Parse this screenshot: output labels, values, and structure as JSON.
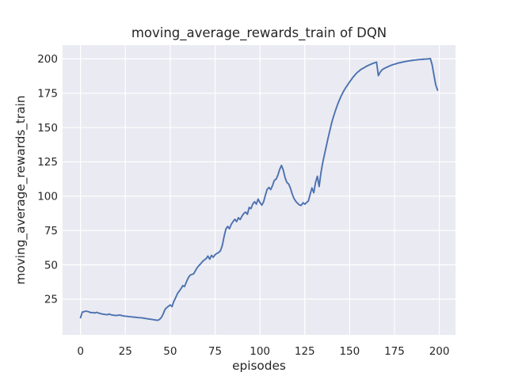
{
  "colors": {
    "figure_background": "#ffffff",
    "axes_background": "#eaeaf2",
    "grid": "#ffffff",
    "line": "#4c72b0",
    "text": "#262626"
  },
  "chart_data": {
    "type": "line",
    "title": "moving_average_rewards_train of DQN",
    "xlabel": "episodes",
    "ylabel": "moving_average_rewards_train",
    "xlim": [
      -10,
      209
    ],
    "ylim": [
      -1,
      210
    ],
    "xticks": [
      0,
      25,
      50,
      75,
      100,
      125,
      150,
      175,
      200
    ],
    "yticks": [
      25,
      50,
      75,
      100,
      125,
      150,
      175,
      200
    ],
    "grid": true,
    "legend": false,
    "series": [
      {
        "name": "moving_average_rewards_train",
        "color": "#4c72b0",
        "points": [
          [
            0,
            11.5
          ],
          [
            1,
            15.6
          ],
          [
            2,
            15.9
          ],
          [
            3,
            16.3
          ],
          [
            4,
            16.0
          ],
          [
            5,
            15.6
          ],
          [
            6,
            15.1
          ],
          [
            7,
            15.3
          ],
          [
            8,
            14.9
          ],
          [
            9,
            15.4
          ],
          [
            10,
            14.9
          ],
          [
            11,
            14.6
          ],
          [
            12,
            14.2
          ],
          [
            13,
            14.0
          ],
          [
            14,
            13.8
          ],
          [
            15,
            13.7
          ],
          [
            16,
            14.2
          ],
          [
            17,
            13.6
          ],
          [
            18,
            13.4
          ],
          [
            19,
            13.2
          ],
          [
            20,
            13.1
          ],
          [
            21,
            13.3
          ],
          [
            22,
            13.5
          ],
          [
            23,
            13.0
          ],
          [
            24,
            12.8
          ],
          [
            25,
            12.6
          ],
          [
            26,
            12.5
          ],
          [
            27,
            12.3
          ],
          [
            28,
            12.2
          ],
          [
            29,
            12.0
          ],
          [
            30,
            11.9
          ],
          [
            31,
            11.8
          ],
          [
            32,
            11.6
          ],
          [
            33,
            11.5
          ],
          [
            34,
            11.4
          ],
          [
            35,
            11.2
          ],
          [
            36,
            11.0
          ],
          [
            37,
            10.8
          ],
          [
            38,
            10.6
          ],
          [
            39,
            10.4
          ],
          [
            40,
            10.2
          ],
          [
            41,
            10.0
          ],
          [
            42,
            9.8
          ],
          [
            43,
            9.6
          ],
          [
            44,
            10.2
          ],
          [
            45,
            11.6
          ],
          [
            46,
            14.0
          ],
          [
            47,
            17.3
          ],
          [
            48,
            18.8
          ],
          [
            49,
            19.8
          ],
          [
            50,
            20.8
          ],
          [
            51,
            19.6
          ],
          [
            52,
            23.4
          ],
          [
            53,
            26.0
          ],
          [
            54,
            29.0
          ],
          [
            55,
            30.8
          ],
          [
            56,
            32.6
          ],
          [
            57,
            34.9
          ],
          [
            58,
            34.2
          ],
          [
            59,
            37.5
          ],
          [
            60,
            40.4
          ],
          [
            61,
            42.4
          ],
          [
            62,
            43.0
          ],
          [
            63,
            43.4
          ],
          [
            64,
            45.6
          ],
          [
            65,
            47.9
          ],
          [
            66,
            49.5
          ],
          [
            67,
            50.8
          ],
          [
            68,
            52.4
          ],
          [
            69,
            53.6
          ],
          [
            70,
            54.5
          ],
          [
            71,
            56.4
          ],
          [
            72,
            54.1
          ],
          [
            73,
            56.9
          ],
          [
            74,
            55.5
          ],
          [
            75,
            57.4
          ],
          [
            76,
            58.3
          ],
          [
            77,
            59.0
          ],
          [
            78,
            60.3
          ],
          [
            79,
            64.0
          ],
          [
            80,
            70.5
          ],
          [
            81,
            76.0
          ],
          [
            82,
            78.0
          ],
          [
            83,
            76.3
          ],
          [
            84,
            79.5
          ],
          [
            85,
            81.5
          ],
          [
            86,
            83.2
          ],
          [
            87,
            81.5
          ],
          [
            88,
            84.3
          ],
          [
            89,
            83.0
          ],
          [
            90,
            85.5
          ],
          [
            91,
            87.4
          ],
          [
            92,
            88.4
          ],
          [
            93,
            86.8
          ],
          [
            94,
            91.8
          ],
          [
            95,
            90.9
          ],
          [
            96,
            94.3
          ],
          [
            97,
            96.0
          ],
          [
            98,
            94.2
          ],
          [
            99,
            97.9
          ],
          [
            100,
            95.4
          ],
          [
            101,
            93.5
          ],
          [
            102,
            95.7
          ],
          [
            103,
            100.6
          ],
          [
            104,
            104.9
          ],
          [
            105,
            106.4
          ],
          [
            106,
            104.8
          ],
          [
            107,
            107.7
          ],
          [
            108,
            111.5
          ],
          [
            109,
            112.4
          ],
          [
            110,
            115.3
          ],
          [
            111,
            119.5
          ],
          [
            112,
            122.4
          ],
          [
            113,
            119.0
          ],
          [
            114,
            113.5
          ],
          [
            115,
            110.0
          ],
          [
            116,
            108.9
          ],
          [
            117,
            105.8
          ],
          [
            118,
            101.5
          ],
          [
            119,
            98.3
          ],
          [
            120,
            96.2
          ],
          [
            121,
            94.8
          ],
          [
            122,
            93.6
          ],
          [
            123,
            93.3
          ],
          [
            124,
            95.2
          ],
          [
            125,
            94.2
          ],
          [
            126,
            95.4
          ],
          [
            127,
            96.5
          ],
          [
            128,
            101.5
          ],
          [
            129,
            106.0
          ],
          [
            130,
            102.5
          ],
          [
            131,
            110.0
          ],
          [
            132,
            114.5
          ],
          [
            133,
            107.0
          ],
          [
            134,
            117.0
          ],
          [
            135,
            124.5
          ],
          [
            136,
            130.5
          ],
          [
            137,
            136.5
          ],
          [
            138,
            142.5
          ],
          [
            139,
            148.0
          ],
          [
            140,
            153.5
          ],
          [
            141,
            158.0
          ],
          [
            142,
            162.0
          ],
          [
            143,
            165.8
          ],
          [
            144,
            169.2
          ],
          [
            145,
            172.2
          ],
          [
            146,
            174.9
          ],
          [
            147,
            177.3
          ],
          [
            148,
            179.4
          ],
          [
            149,
            181.3
          ],
          [
            150,
            183.2
          ],
          [
            151,
            185.0
          ],
          [
            152,
            186.8
          ],
          [
            153,
            188.3
          ],
          [
            154,
            189.8
          ],
          [
            155,
            190.9
          ],
          [
            156,
            192.0
          ],
          [
            157,
            192.8
          ],
          [
            158,
            193.5
          ],
          [
            159,
            194.3
          ],
          [
            160,
            195.0
          ],
          [
            161,
            195.6
          ],
          [
            162,
            196.2
          ],
          [
            163,
            196.7
          ],
          [
            164,
            197.2
          ],
          [
            165,
            197.6
          ],
          [
            166,
            187.8
          ],
          [
            167,
            190.3
          ],
          [
            168,
            191.9
          ],
          [
            169,
            192.8
          ],
          [
            170,
            193.5
          ],
          [
            171,
            194.1
          ],
          [
            172,
            194.7
          ],
          [
            173,
            195.2
          ],
          [
            174,
            195.7
          ],
          [
            175,
            196.1
          ],
          [
            176,
            196.5
          ],
          [
            177,
            196.9
          ],
          [
            178,
            197.2
          ],
          [
            179,
            197.5
          ],
          [
            180,
            197.8
          ],
          [
            181,
            198.1
          ],
          [
            182,
            198.3
          ],
          [
            183,
            198.5
          ],
          [
            184,
            198.7
          ],
          [
            185,
            198.9
          ],
          [
            186,
            199.1
          ],
          [
            187,
            199.2
          ],
          [
            188,
            199.4
          ],
          [
            189,
            199.5
          ],
          [
            190,
            199.6
          ],
          [
            191,
            199.7
          ],
          [
            192,
            199.8
          ],
          [
            193,
            199.9
          ],
          [
            194,
            200.0
          ],
          [
            195,
            200.2
          ],
          [
            196,
            195.5
          ],
          [
            197,
            188.0
          ],
          [
            198,
            181.0
          ],
          [
            199,
            177.2
          ]
        ]
      }
    ]
  }
}
